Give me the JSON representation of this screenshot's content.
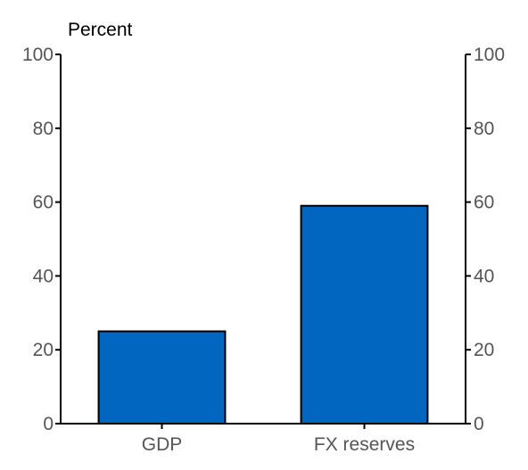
{
  "chart_data": {
    "type": "bar",
    "unit_label": "Percent",
    "categories": [
      "GDP",
      "FX reserves"
    ],
    "values": [
      25,
      59
    ],
    "ylim": [
      0,
      100
    ],
    "yticks": [
      0,
      20,
      40,
      60,
      80,
      100
    ],
    "left_axis": true,
    "right_axis": true,
    "grid": false,
    "bar_color": "#0066c0",
    "bar_outline_color": "#000000"
  }
}
